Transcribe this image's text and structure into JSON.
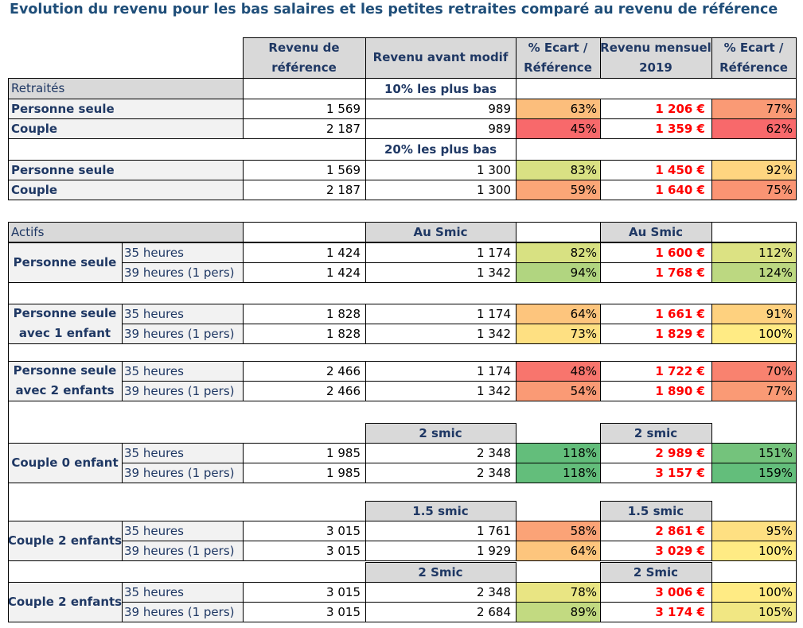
{
  "title": "Evolution du revenu pour les bas salaires et les petites retraites comparé au revenu de référence",
  "headers": {
    "ref": "Revenu de\nréférence",
    "avant": "Revenu avant modif",
    "ecart1": "% Ecart /\nRéférence",
    "mensuel": "Revenu mensuel\n2019",
    "ecart2": "% Ecart /\nRéférence"
  },
  "colors": {
    "dark_red": "#F8696B",
    "orange_red": "#FA9473",
    "orange": "#FCB479",
    "light_orange": "#FED480",
    "yellow": "#FFEB84",
    "yellow_green": "#D8E182",
    "light_green": "#B1D580",
    "green": "#63BE7B"
  },
  "retraites": {
    "section": "Retraités",
    "groups": [
      {
        "caption": "10% les plus bas",
        "rows": [
          {
            "label": "Personne seule",
            "ref": "1 569",
            "avant": "989",
            "ecart1": "63%",
            "c1": "#FCBE7C",
            "mensuel": "1 206 €",
            "ecart2": "77%",
            "c2": "#FA9A75"
          },
          {
            "label": "Couple",
            "ref": "2 187",
            "avant": "989",
            "ecart1": "45%",
            "c1": "#F8696B",
            "mensuel": "1 359 €",
            "ecart2": "62%",
            "c2": "#F8696B"
          }
        ]
      },
      {
        "caption": "20% les plus bas",
        "rows": [
          {
            "label": "Personne seule",
            "ref": "1 569",
            "avant": "1 300",
            "ecart1": "83%",
            "c1": "#D9E183",
            "mensuel": "1 450 €",
            "ecart2": "92%",
            "c2": "#FED580"
          },
          {
            "label": "Couple",
            "ref": "2 187",
            "avant": "1 300",
            "ecart1": "59%",
            "c1": "#FBA677",
            "mensuel": "1 640 €",
            "ecart2": "75%",
            "c2": "#FA9473"
          }
        ]
      }
    ]
  },
  "actifs": {
    "section": "Actifs",
    "cap1": "Au Smic",
    "cap2": "Au Smic",
    "groups": [
      {
        "label1": "Personne seule",
        "label2": "",
        "rows": [
          {
            "sub": "35 heures",
            "ref": "1 424",
            "avant": "1 174",
            "ecart1": "82%",
            "c1": "#D8E182",
            "mensuel": "1 600 €",
            "ecart2": "112%",
            "c2": "#DCE283"
          },
          {
            "sub": "39 heures (1 pers)",
            "ref": "1 424",
            "avant": "1 342",
            "ecart1": "94%",
            "c1": "#B1D580",
            "mensuel": "1 768 €",
            "ecart2": "124%",
            "c2": "#BCD881"
          }
        ]
      },
      {
        "label1": "Personne seule",
        "label2": "avec 1 enfant",
        "rows": [
          {
            "sub": "35 heures",
            "ref": "1 828",
            "avant": "1 174",
            "ecart1": "64%",
            "c1": "#FDC57D",
            "mensuel": "1 661 €",
            "ecart2": "91%",
            "c2": "#FED17F"
          },
          {
            "sub": "39 heures (1 pers)",
            "ref": "1 828",
            "avant": "1 342",
            "ecart1": "73%",
            "c1": "#FEE082",
            "mensuel": "1 829 €",
            "ecart2": "100%",
            "c2": "#FFEB84"
          }
        ]
      },
      {
        "label1": "Personne seule",
        "label2": "avec 2 enfants",
        "rows": [
          {
            "sub": "35 heures",
            "ref": "2 466",
            "avant": "1 174",
            "ecart1": "48%",
            "c1": "#F8756D",
            "mensuel": "1 722 €",
            "ecart2": "70%",
            "c2": "#F9826F"
          },
          {
            "sub": "39 heures (1 pers)",
            "ref": "2 466",
            "avant": "1 342",
            "ecart1": "54%",
            "c1": "#FA9A75",
            "mensuel": "1 890 €",
            "ecart2": "77%",
            "c2": "#FA9A75"
          }
        ]
      },
      {
        "capA": "2 smic",
        "capB": "2 smic",
        "label1": "Couple 0 enfant",
        "label2": "",
        "rows": [
          {
            "sub": "35 heures",
            "ref": "1 985",
            "avant": "2 348",
            "ecart1": "118%",
            "c1": "#63BE7B",
            "mensuel": "2 989 €",
            "ecart2": "151%",
            "c2": "#74C37C"
          },
          {
            "sub": "39 heures (1 pers)",
            "ref": "1 985",
            "avant": "2 348",
            "ecart1": "118%",
            "c1": "#63BE7B",
            "mensuel": "3 157 €",
            "ecart2": "159%",
            "c2": "#63BE7B"
          }
        ]
      },
      {
        "capA": "1.5 smic",
        "capB": "1.5 smic",
        "label1": "Couple 2 enfants",
        "label2": "",
        "rows": [
          {
            "sub": "35 heures",
            "ref": "3 015",
            "avant": "1 761",
            "ecart1": "58%",
            "c1": "#FBA377",
            "mensuel": "2 861 €",
            "ecart2": "95%",
            "c2": "#FEE082"
          },
          {
            "sub": "39 heures (1 pers)",
            "ref": "3 015",
            "avant": "1 929",
            "ecart1": "64%",
            "c1": "#FDC57D",
            "mensuel": "3 029 €",
            "ecart2": "100%",
            "c2": "#FFEB84"
          }
        ]
      },
      {
        "capA": "2 Smic",
        "capB": "2 Smic",
        "label1": "Couple 2 enfants",
        "label2": "",
        "rows": [
          {
            "sub": "35 heures",
            "ref": "3 015",
            "avant": "2 348",
            "ecart1": "78%",
            "c1": "#E9E583",
            "mensuel": "3 006 €",
            "ecart2": "100%",
            "c2": "#FFEB84"
          },
          {
            "sub": "39 heures (1 pers)",
            "ref": "3 015",
            "avant": "2 684",
            "ecart1": "89%",
            "c1": "#C2DA81",
            "mensuel": "3 174 €",
            "ecart2": "105%",
            "c2": "#F1E783"
          }
        ]
      }
    ]
  }
}
